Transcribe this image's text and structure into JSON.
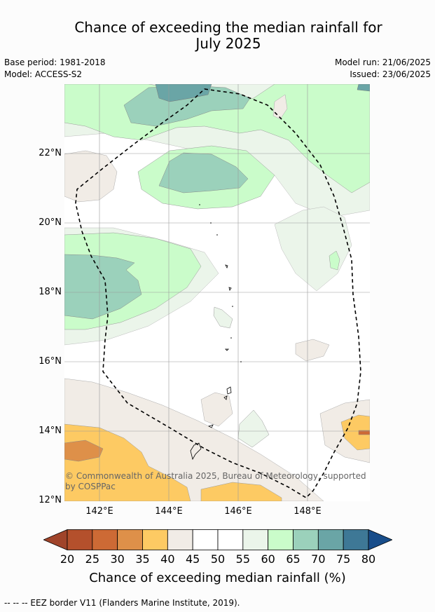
{
  "title_line1": "Chance of exceeding the median rainfall for",
  "title_line2": "July 2025",
  "base_period": "Base period: 1981-2018",
  "model": "Model: ACCESS-S2",
  "model_run": "Model run: 21/06/2025",
  "issued": "Issued: 23/06/2025",
  "lat_labels": [
    "22°N",
    "20°N",
    "18°N",
    "16°N",
    "14°N",
    "12°N"
  ],
  "lon_labels": [
    "142°E",
    "144°E",
    "146°E",
    "148°E"
  ],
  "copyright_line1": "© Commonwealth of Australia 2025, Bureau of Meteorology, supported",
  "copyright_line2": "by COSPPac",
  "colorbar": {
    "ticks": [
      "20",
      "25",
      "30",
      "35",
      "40",
      "45",
      "50",
      "55",
      "60",
      "65",
      "70",
      "75",
      "80"
    ],
    "colors": [
      "#a0442a",
      "#b4502c",
      "#cd6a35",
      "#de9049",
      "#fdca63",
      "#f1ece6",
      "#ffffff",
      "#ffffff",
      "#ebf5ea",
      "#cafcca",
      "#9bd1bb",
      "#6aa5a6",
      "#3e7896",
      "#184d8a"
    ],
    "title": "Chance of exceeding median rainfall (%)"
  },
  "footnote": "--  --  -- EEZ border V11 (Flanders Marine Institute, 2019)."
}
